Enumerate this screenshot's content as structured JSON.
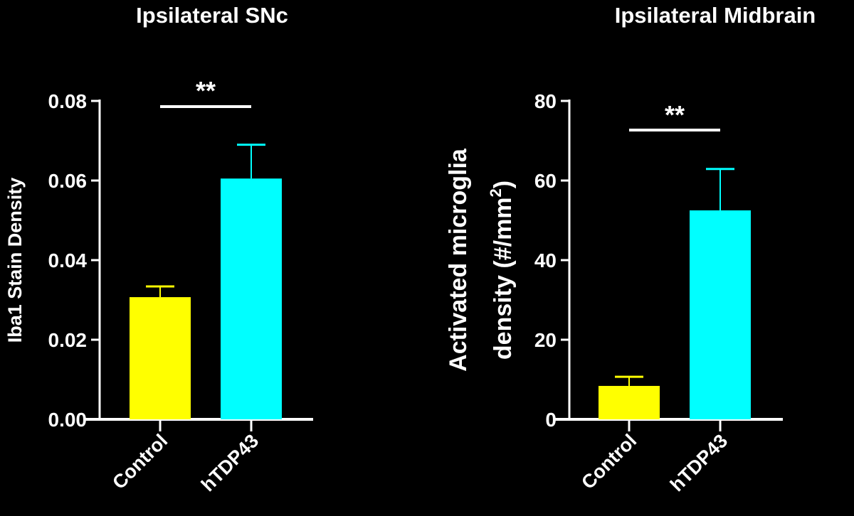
{
  "chart_data": [
    {
      "type": "bar",
      "title": "Ipsilateral SNc",
      "xlabel": "",
      "ylabel": "Iba1 Stain Density",
      "ylabel_sup": "",
      "ylim": [
        0,
        0.08
      ],
      "yticks": [
        "0.00",
        "0.02",
        "0.04",
        "0.06",
        "0.08"
      ],
      "categories": [
        "Control",
        "hTDP43"
      ],
      "values": [
        0.0307,
        0.0605
      ],
      "error_upper": [
        0.0334,
        0.069
      ],
      "colors": [
        "#ffff00",
        "#00ffff"
      ],
      "significance": "**",
      "grid": false
    },
    {
      "type": "bar",
      "title": "Ipsilateral Midbrain",
      "xlabel": "",
      "ylabel": "Activated microglia",
      "ylabel2": "density (#/mm",
      "ylabel_sup": "2",
      "ylabel_close": ")",
      "ylim": [
        0,
        80
      ],
      "yticks": [
        "0",
        "20",
        "40",
        "60",
        "80"
      ],
      "categories": [
        "Control",
        "hTDP43"
      ],
      "values": [
        8.4,
        52.5
      ],
      "error_upper": [
        10.7,
        62.9
      ],
      "colors": [
        "#ffff00",
        "#00ffff"
      ],
      "significance": "**",
      "grid": false
    }
  ]
}
